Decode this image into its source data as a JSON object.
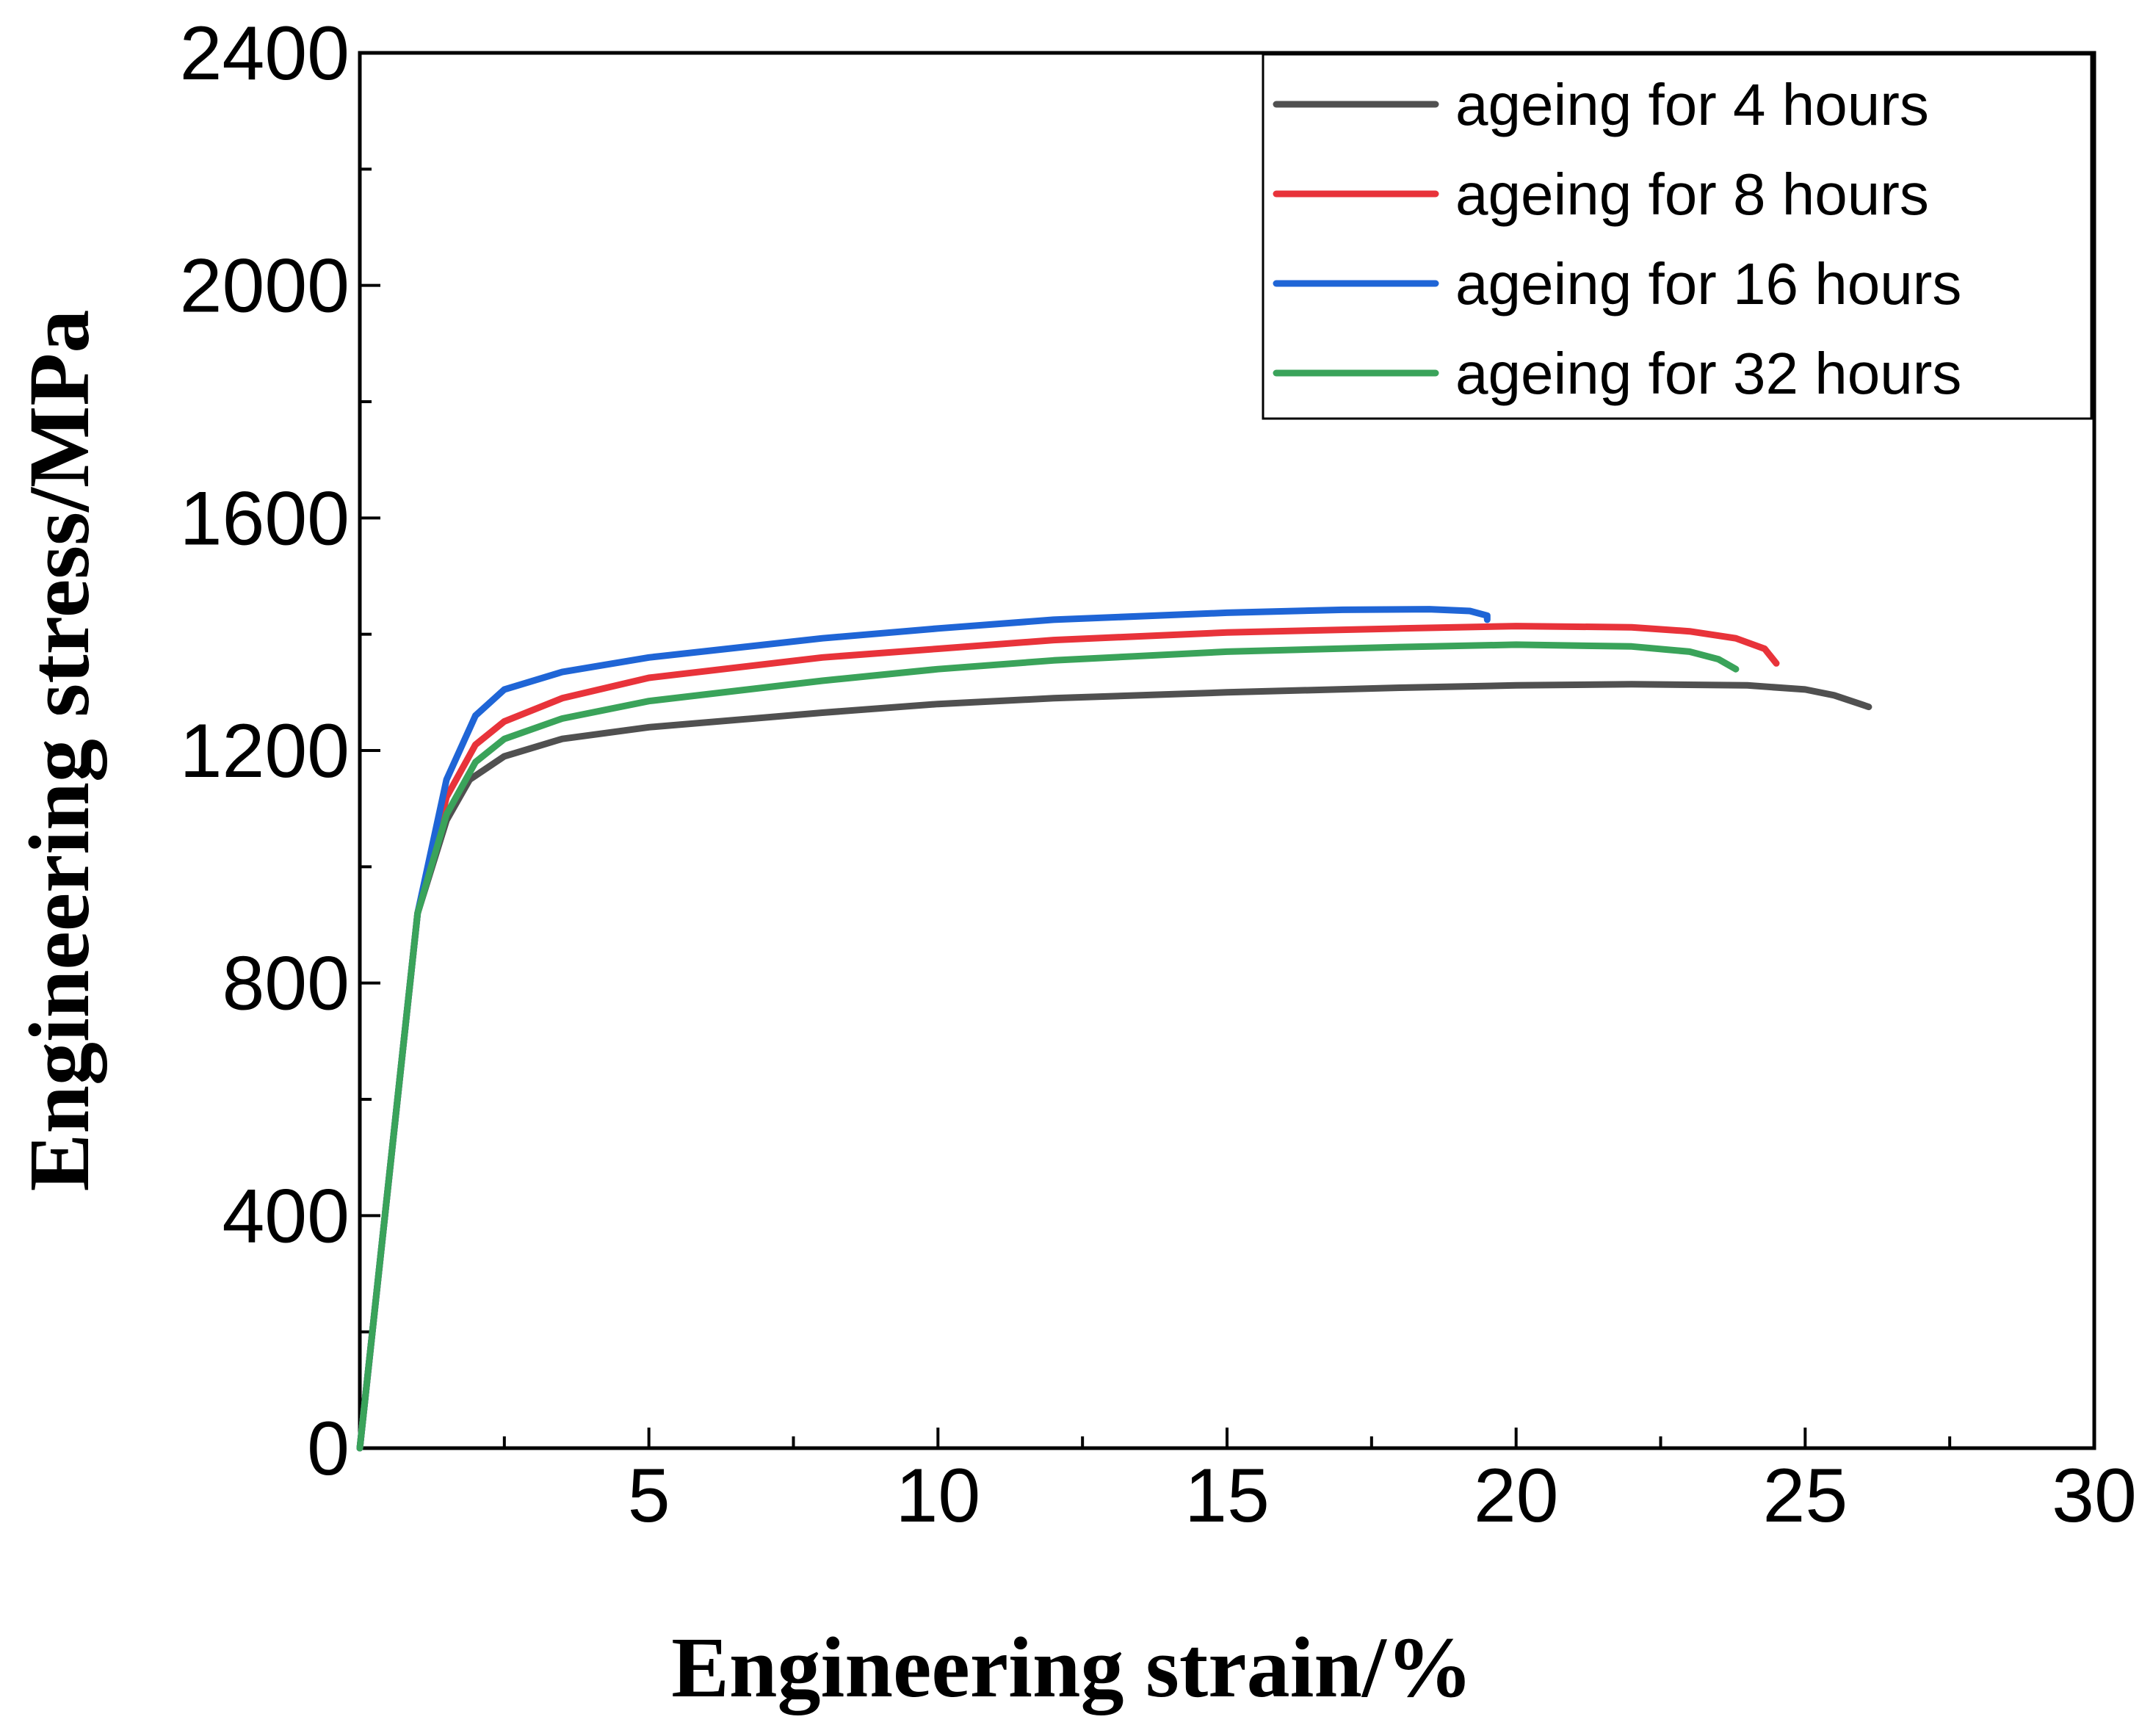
{
  "chart_data": {
    "type": "line",
    "title": "",
    "xlabel": "Engineering strain/%",
    "ylabel": "Engineering stress/MPa",
    "xlim": [
      0,
      30
    ],
    "ylim": [
      0,
      2400
    ],
    "xticks": [
      5,
      10,
      15,
      20,
      25,
      30
    ],
    "xtick_labels": [
      "5",
      "10",
      "15",
      "20",
      "25",
      "30"
    ],
    "xminor": [
      2.5,
      7.5,
      12.5,
      17.5,
      22.5,
      27.5
    ],
    "yticks": [
      0,
      400,
      800,
      1200,
      1600,
      2000,
      2400
    ],
    "ytick_labels": [
      "0",
      "400",
      "800",
      "1200",
      "1600",
      "2000",
      "2400"
    ],
    "yminor": [
      200,
      600,
      1000,
      1400,
      1800,
      2200
    ],
    "legend_position": "top-right",
    "series": [
      {
        "name": "ageing for 4 hours",
        "color": "#505050",
        "x": [
          0,
          1.0,
          1.5,
          1.9,
          2.5,
          3.5,
          5,
          8,
          10,
          12,
          15,
          18,
          20,
          22,
          24,
          25,
          25.5,
          26.1
        ],
        "y": [
          0,
          920,
          1080,
          1150,
          1190,
          1220,
          1240,
          1265,
          1280,
          1290,
          1300,
          1308,
          1312,
          1314,
          1312,
          1305,
          1295,
          1275
        ]
      },
      {
        "name": "ageing for 8 hours",
        "color": "#e8333a",
        "x": [
          0,
          1.0,
          1.5,
          2.0,
          2.5,
          3.5,
          5,
          8,
          10,
          12,
          15,
          18,
          20,
          22,
          23,
          23.8,
          24.3,
          24.5
        ],
        "y": [
          0,
          920,
          1120,
          1210,
          1250,
          1290,
          1325,
          1360,
          1375,
          1390,
          1403,
          1410,
          1414,
          1412,
          1405,
          1393,
          1375,
          1350
        ]
      },
      {
        "name": "ageing for 16 hours",
        "color": "#1f65d6",
        "x": [
          0,
          1.0,
          1.5,
          2.0,
          2.5,
          3.5,
          5,
          8,
          10,
          12,
          15,
          17,
          18.5,
          19.2,
          19.5,
          19.5
        ],
        "y": [
          0,
          920,
          1150,
          1260,
          1305,
          1335,
          1360,
          1393,
          1410,
          1425,
          1437,
          1442,
          1443,
          1440,
          1432,
          1425
        ]
      },
      {
        "name": "ageing for 32 hours",
        "color": "#3aa35a",
        "x": [
          0,
          1.0,
          1.5,
          2.0,
          2.5,
          3.5,
          5,
          8,
          10,
          12,
          15,
          18,
          20,
          22,
          23,
          23.5,
          23.8
        ],
        "y": [
          0,
          920,
          1090,
          1180,
          1220,
          1255,
          1285,
          1320,
          1340,
          1355,
          1370,
          1378,
          1382,
          1379,
          1370,
          1357,
          1340
        ]
      }
    ]
  }
}
